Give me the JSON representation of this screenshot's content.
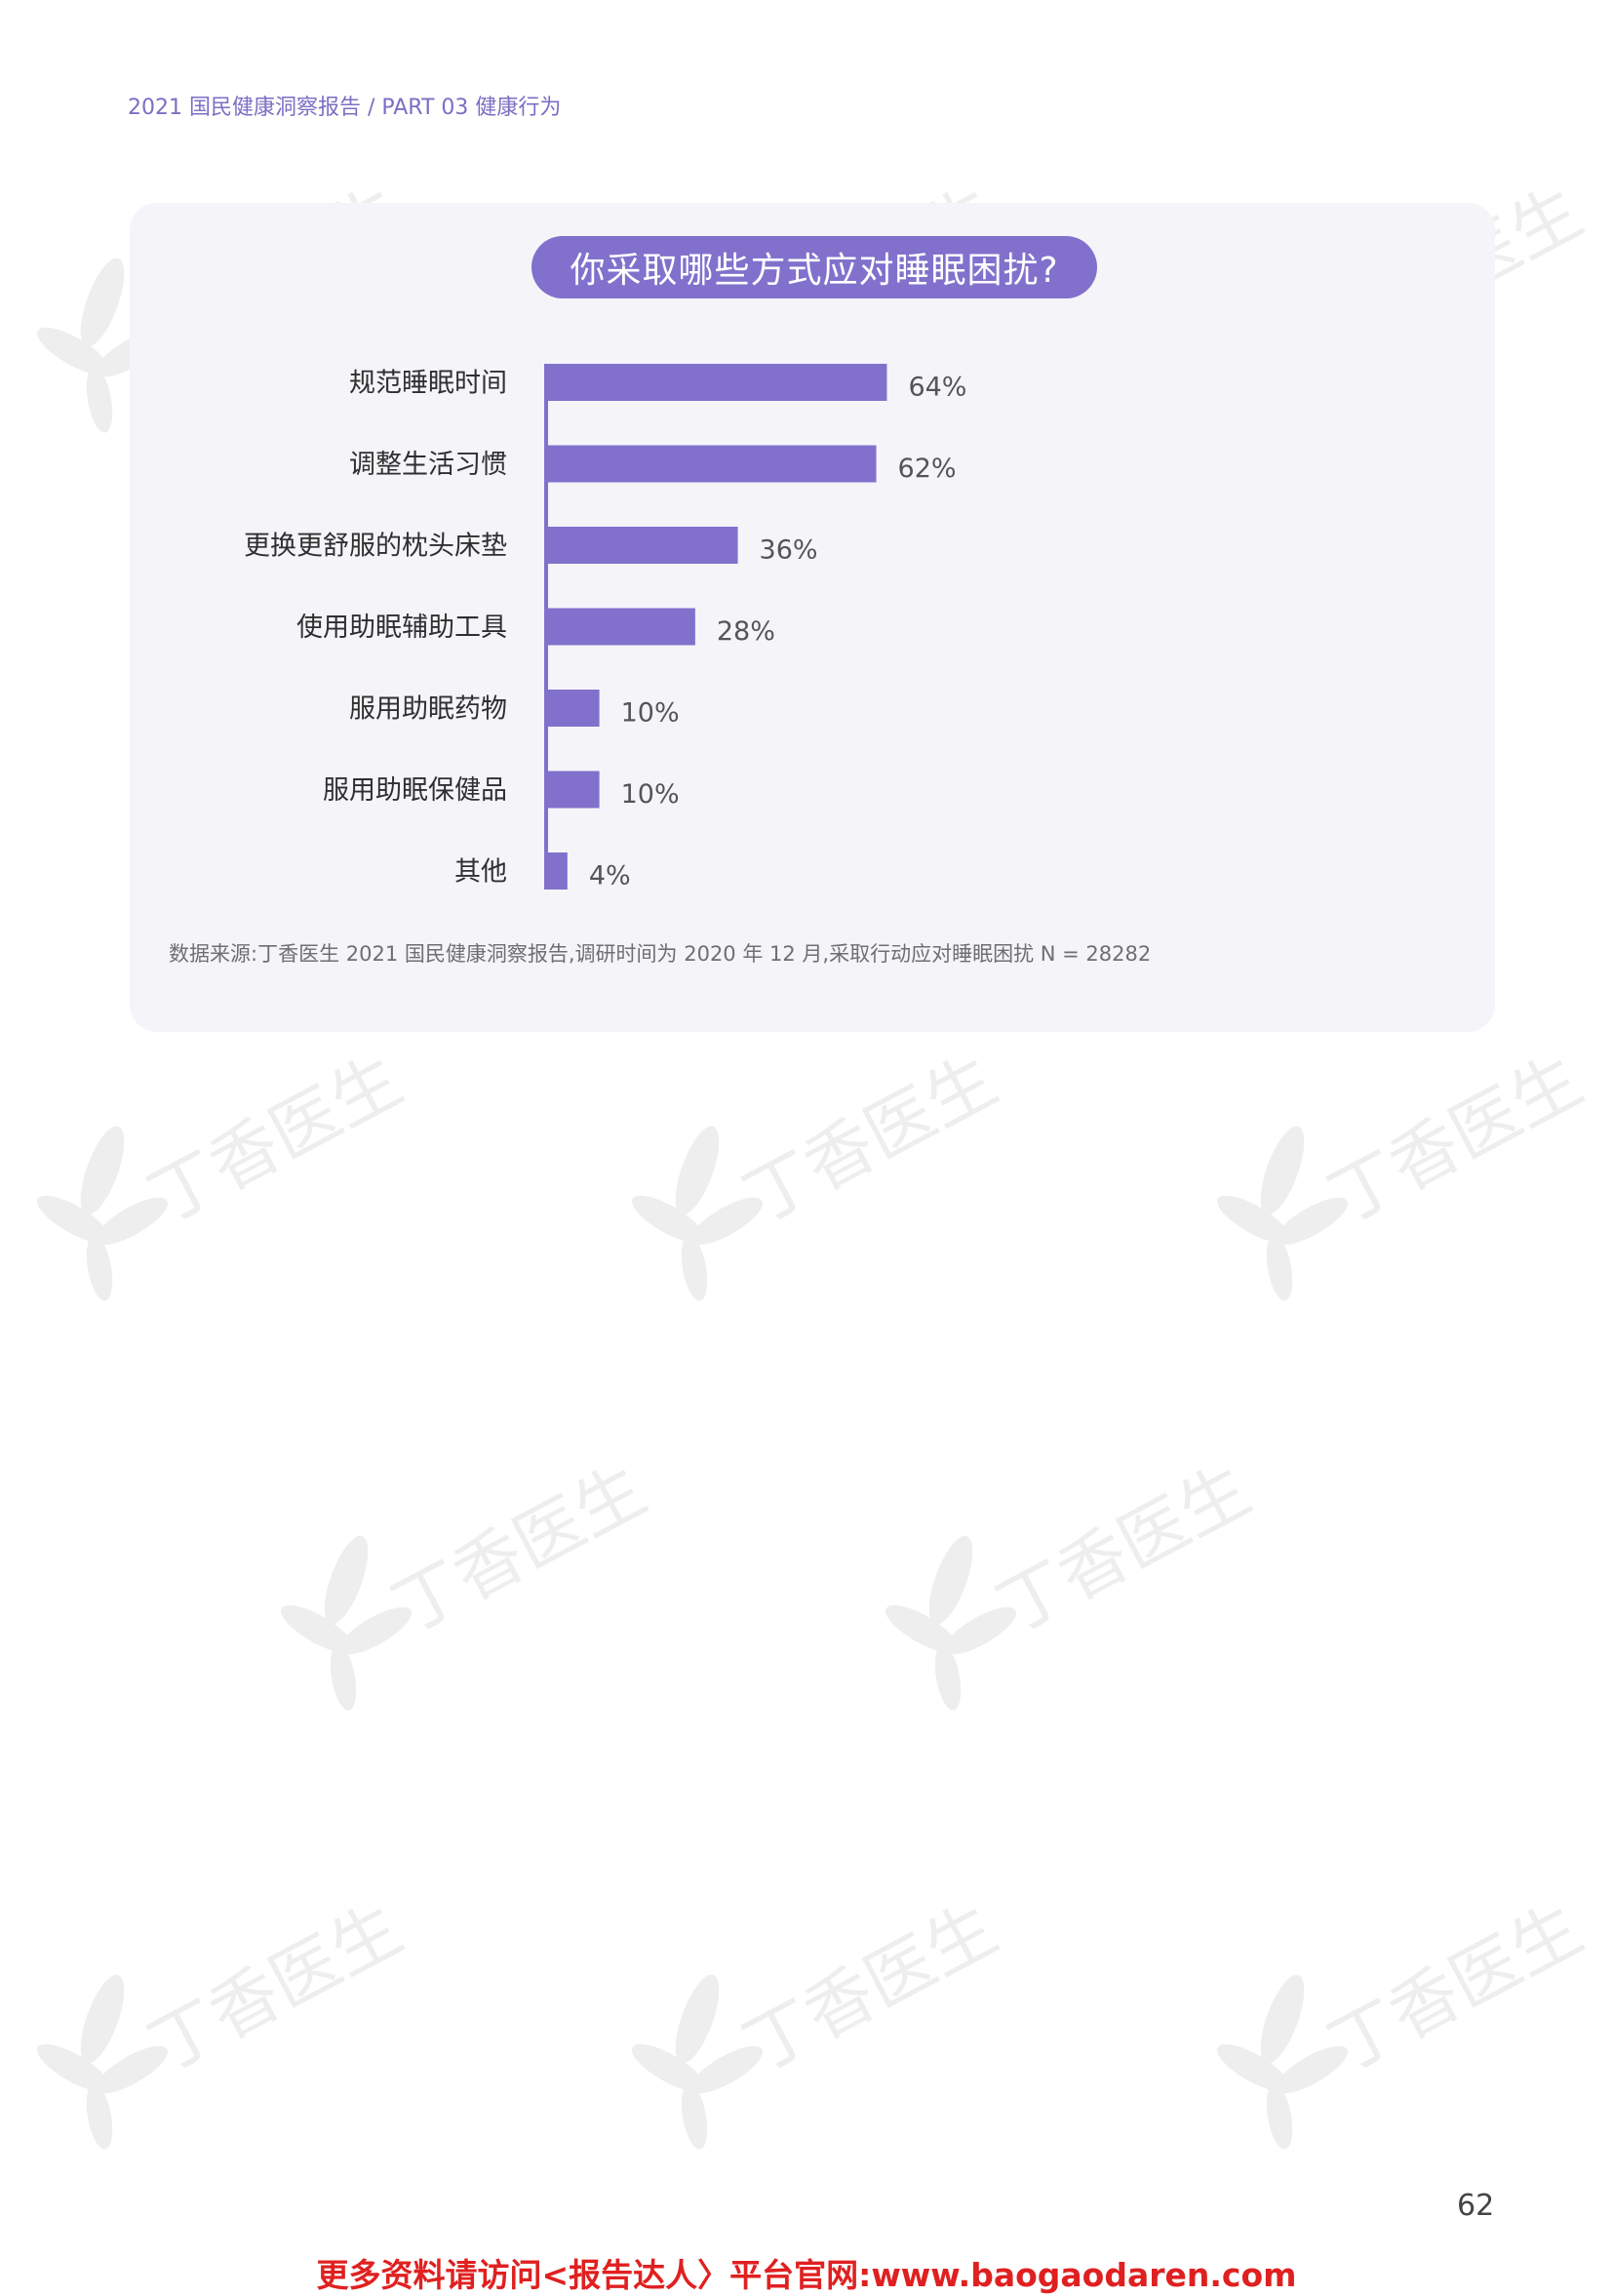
{
  "header": {
    "text": "2021 国民健康洞察报告 / PART 03 健康行为"
  },
  "chart_data": {
    "type": "bar",
    "orientation": "horizontal",
    "title": "你采取哪些方式应对睡眠困扰?",
    "categories": [
      "规范睡眠时间",
      "调整生活习惯",
      "更换更舒服的枕头床垫",
      "使用助眠辅助工具",
      "服用助眠药物",
      "服用助眠保健品",
      "其他"
    ],
    "values": [
      64,
      62,
      36,
      28,
      10,
      10,
      4
    ],
    "value_labels": [
      "64%",
      "62%",
      "36%",
      "28%",
      "10%",
      "10%",
      "4%"
    ],
    "unit": "%",
    "xlim": [
      0,
      100
    ],
    "grid": false,
    "bar_color": "#8171cc",
    "axis_color": "#8171cc"
  },
  "source": {
    "text": "数据来源:丁香医生 2021 国民健康洞察报告,调研时间为 2020 年 12 月,采取行动应对睡眠困扰 N = 28282"
  },
  "watermark": {
    "text": "丁香医生",
    "color": "#e4e4e4"
  },
  "page_number": "62",
  "footer": {
    "text": "更多资料请访问<报告达人〉平台官网:www.baogaodaren.com",
    "color": "#e02020"
  }
}
